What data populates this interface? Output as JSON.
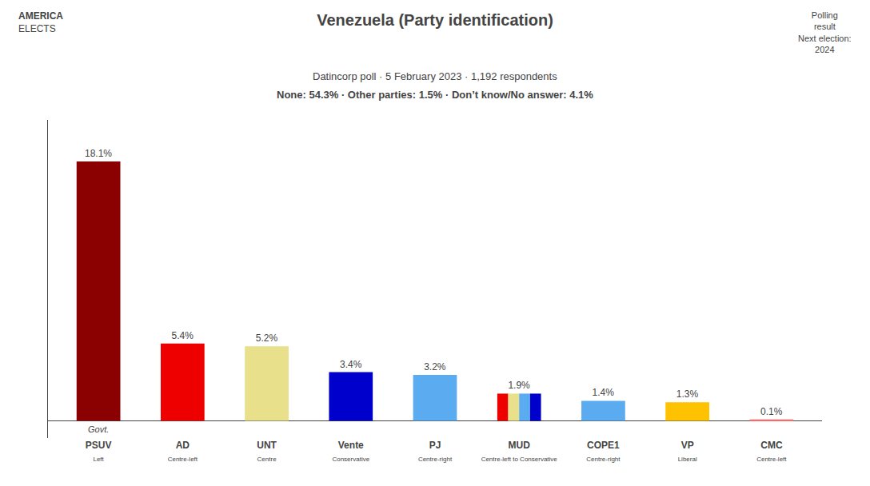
{
  "chart_data": {
    "type": "bar",
    "title": "Venezuela (Party identification)",
    "subtitle": [
      "Datincorp poll · 5 February 2023 · 1,192 respondents",
      "None: 54.3% · Other parties: 1.5% · Don’t know/No answer: 4.1%"
    ],
    "categories": [
      "PSUV",
      "AD",
      "UNT",
      "Vente",
      "PJ",
      "MUD",
      "COPE1",
      "VP",
      "CMC"
    ],
    "sublabels": [
      "Left",
      "Centre-left",
      "Centre",
      "Conservative",
      "Centre-right",
      "Centre-left to Conservative",
      "Centre-right",
      "Liberal",
      "Centre-left"
    ],
    "values": [
      18.1,
      5.4,
      5.2,
      3.4,
      3.2,
      1.9,
      1.4,
      1.3,
      0.1
    ],
    "value_labels": [
      "18.1%",
      "5.4%",
      "5.2%",
      "3.4%",
      "3.2%",
      "1.9%",
      "1.4%",
      "1.3%",
      "0.1%"
    ],
    "colors": [
      "#8b0000",
      "#ee0000",
      "#e8e08a",
      "#0000cc",
      "#5aabf0",
      [
        "#ee0000",
        "#e8e08a",
        "#5aabf0",
        "#0000cc"
      ],
      "#5aabf0",
      "#ffc200",
      "#ff6666"
    ],
    "annotations": [
      "Govt.",
      "AMERICA",
      "ELECTS",
      "Polling",
      "result",
      "Next election:",
      "2024"
    ],
    "ylim": [
      -1.2,
      21
    ],
    "yticks": [],
    "tick_labels": "x",
    "data_labels": true,
    "grid": false
  }
}
